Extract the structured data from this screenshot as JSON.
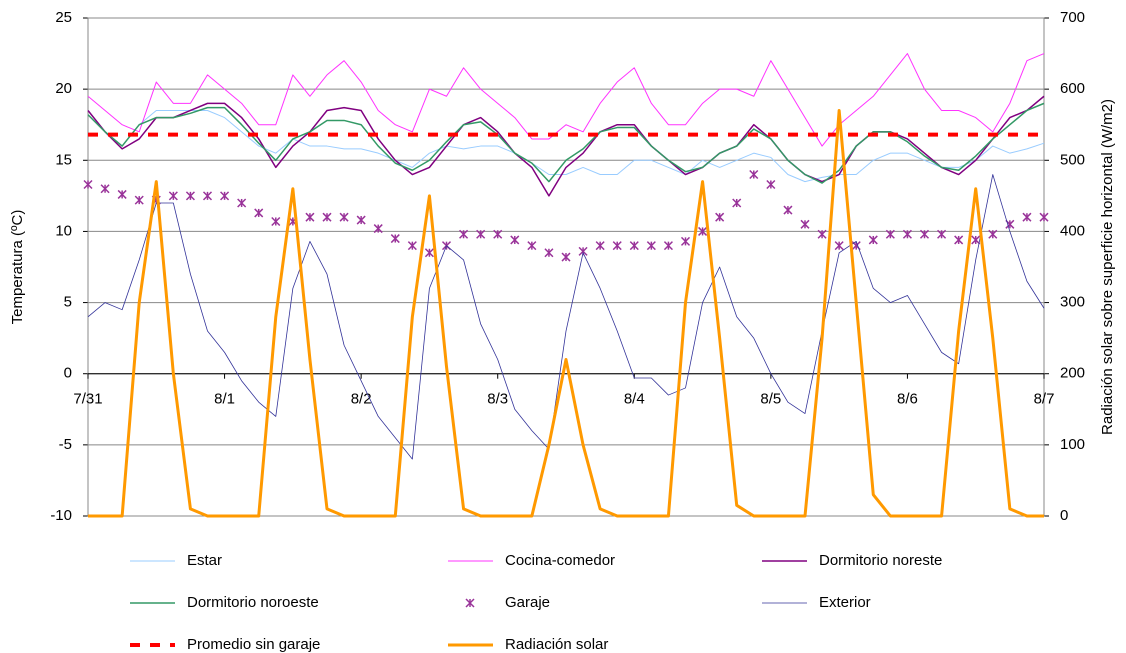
{
  "chart_data": {
    "type": "line",
    "y_label": "Temperatura (ºC)",
    "y2_label": "Radiación solar sobre superficie horizontal (W/m2)",
    "categories": [
      "7/31",
      null,
      null,
      null,
      null,
      null,
      null,
      null,
      "8/1",
      null,
      null,
      null,
      null,
      null,
      null,
      null,
      "8/2",
      null,
      null,
      null,
      null,
      null,
      null,
      null,
      "8/3",
      null,
      null,
      null,
      null,
      null,
      null,
      null,
      "8/4",
      null,
      null,
      null,
      null,
      null,
      null,
      null,
      "8/5",
      null,
      null,
      null,
      null,
      null,
      null,
      null,
      "8/6",
      null,
      null,
      null,
      null,
      null,
      null,
      null,
      "8/7"
    ],
    "ylim": [
      -10,
      25
    ],
    "yticks": [
      -10,
      -5,
      0,
      5,
      10,
      15,
      20,
      25
    ],
    "y2lim": [
      0,
      700
    ],
    "y2ticks": [
      0,
      100,
      200,
      300,
      400,
      500,
      600,
      700
    ],
    "grid": true,
    "legend": "bottom",
    "series": [
      {
        "name": "Estar",
        "color": "#99ccff",
        "style": "line",
        "width": 1,
        "values": [
          18.5,
          17,
          16,
          17.5,
          18.5,
          18.5,
          18.5,
          18.5,
          18,
          17,
          16,
          15.5,
          16.5,
          16,
          16,
          15.8,
          15.8,
          15.5,
          15,
          14.5,
          15.5,
          16,
          15.8,
          16,
          16,
          15.5,
          14.8,
          14,
          14,
          14.5,
          14,
          14,
          15,
          15,
          14.5,
          14,
          15,
          14.5,
          15,
          15.5,
          15.2,
          14,
          13.5,
          13.8,
          14,
          14,
          15,
          15.5,
          15.5,
          15,
          14.5,
          14.5,
          15,
          16,
          15.5,
          15.8,
          16.2
        ]
      },
      {
        "name": "Cocina-comedor",
        "color": "#ff33ff",
        "style": "line",
        "width": 1,
        "values": [
          19.5,
          18.5,
          17.5,
          17,
          20.5,
          19,
          19,
          21,
          20,
          19,
          17.5,
          17.5,
          21,
          19.5,
          21,
          22,
          20.5,
          18.5,
          17.5,
          17,
          20,
          19.5,
          21.5,
          20,
          19,
          18,
          16.5,
          16.5,
          17.5,
          17,
          19,
          20.5,
          21.5,
          19,
          17.5,
          17.5,
          19,
          20,
          20,
          19.5,
          22,
          20,
          18,
          16,
          17.5,
          18.5,
          19.5,
          21,
          22.5,
          20,
          18.5,
          18.5,
          18,
          17,
          19,
          22,
          22.5
        ]
      },
      {
        "name": "Dormitorio noreste",
        "color": "#800080",
        "style": "line",
        "width": 1.5,
        "values": [
          18.5,
          17,
          15.8,
          16.5,
          18,
          18,
          18.5,
          19,
          19,
          18,
          16.5,
          14.5,
          16,
          17,
          18.5,
          18.7,
          18.5,
          16.5,
          15,
          14,
          14.5,
          16,
          17.5,
          18,
          17,
          15.5,
          14.5,
          12.5,
          14.5,
          15.5,
          17,
          17.5,
          17.5,
          16,
          15,
          14,
          14.5,
          15.5,
          16,
          17.5,
          16.5,
          15,
          14,
          13.5,
          14,
          16,
          17,
          17,
          16.5,
          15.5,
          14.5,
          14,
          15,
          16.5,
          18,
          18.5,
          19.5
        ]
      },
      {
        "name": "Dormitorio noroeste",
        "color": "#339966",
        "style": "line",
        "width": 1.5,
        "values": [
          18.2,
          17,
          16,
          17.5,
          18,
          18,
          18.3,
          18.7,
          18.7,
          17.5,
          16.2,
          15,
          16.5,
          17,
          17.8,
          17.8,
          17.5,
          16,
          14.8,
          14.3,
          15,
          16.3,
          17.5,
          17.7,
          16.8,
          15.5,
          14.8,
          13.5,
          15,
          15.8,
          17,
          17.3,
          17.3,
          16,
          15,
          14.2,
          14.5,
          15.5,
          16,
          17.2,
          16.5,
          15,
          14,
          13.4,
          14.3,
          16,
          17,
          17,
          16.3,
          15.3,
          14.5,
          14.3,
          15.3,
          16.5,
          17.5,
          18.5,
          19
        ]
      },
      {
        "name": "Garaje",
        "color": "#993399",
        "style": "markers",
        "width": 1.5,
        "values": [
          13.3,
          13,
          12.6,
          12.2,
          12.2,
          12.5,
          12.5,
          12.5,
          12.5,
          12,
          11.3,
          10.7,
          10.7,
          11,
          11,
          11,
          10.8,
          10.2,
          9.5,
          9,
          8.5,
          9,
          9.8,
          9.8,
          9.8,
          9.4,
          9,
          8.5,
          8.2,
          8.6,
          9,
          9,
          9,
          9,
          9,
          9.3,
          10,
          11,
          12,
          14,
          13.3,
          11.5,
          10.5,
          9.8,
          9,
          9,
          9.4,
          9.8,
          9.8,
          9.8,
          9.8,
          9.4,
          9.4,
          9.8,
          10.5,
          11,
          11
        ]
      },
      {
        "name": "Exterior",
        "color": "#333399",
        "style": "line",
        "width": 0.8,
        "values": [
          4,
          5,
          4.5,
          8,
          12,
          12,
          7,
          3,
          1.5,
          -0.5,
          -2,
          -3,
          6,
          9.3,
          7,
          2,
          -0.5,
          -3,
          -4.5,
          -6,
          6,
          9,
          8,
          3.5,
          1,
          -2.5,
          -4,
          -5.3,
          3,
          8.5,
          6,
          3,
          -0.3,
          -0.3,
          -1.5,
          -1,
          5,
          7.5,
          4,
          2.5,
          0,
          -2,
          -2.8,
          3,
          8.5,
          9.3,
          6,
          5,
          5.5,
          3.5,
          1.5,
          0.7,
          8,
          14,
          10,
          6.5,
          4.6
        ]
      },
      {
        "name": "Promedio sin garaje",
        "color": "#ff0000",
        "style": "dashed",
        "width": 4,
        "values": [
          16.8,
          16.8,
          16.8,
          16.8,
          16.8,
          16.8,
          16.8,
          16.8,
          16.8,
          16.8,
          16.8,
          16.8,
          16.8,
          16.8,
          16.8,
          16.8,
          16.8,
          16.8,
          16.8,
          16.8,
          16.8,
          16.8,
          16.8,
          16.8,
          16.8,
          16.8,
          16.8,
          16.8,
          16.8,
          16.8,
          16.8,
          16.8,
          16.8,
          16.8,
          16.8,
          16.8,
          16.8,
          16.8,
          16.8,
          16.8,
          16.8,
          16.8,
          16.8,
          16.8,
          16.8,
          16.8,
          16.8,
          16.8,
          16.8,
          16.8,
          16.8,
          16.8,
          16.8,
          16.8,
          16.8,
          16.8,
          16.8
        ]
      },
      {
        "name": "Radiación solar",
        "color": "#ff9900",
        "style": "line",
        "width": 3,
        "axis": "y2",
        "values": [
          0,
          0,
          0,
          300,
          470,
          200,
          10,
          0,
          0,
          0,
          0,
          280,
          460,
          220,
          10,
          0,
          0,
          0,
          0,
          280,
          450,
          210,
          10,
          0,
          0,
          0,
          0,
          100,
          220,
          100,
          10,
          0,
          0,
          0,
          0,
          300,
          470,
          250,
          15,
          0,
          0,
          0,
          0,
          250,
          570,
          300,
          30,
          0,
          0,
          0,
          0,
          260,
          460,
          250,
          10,
          0,
          0
        ]
      }
    ]
  }
}
